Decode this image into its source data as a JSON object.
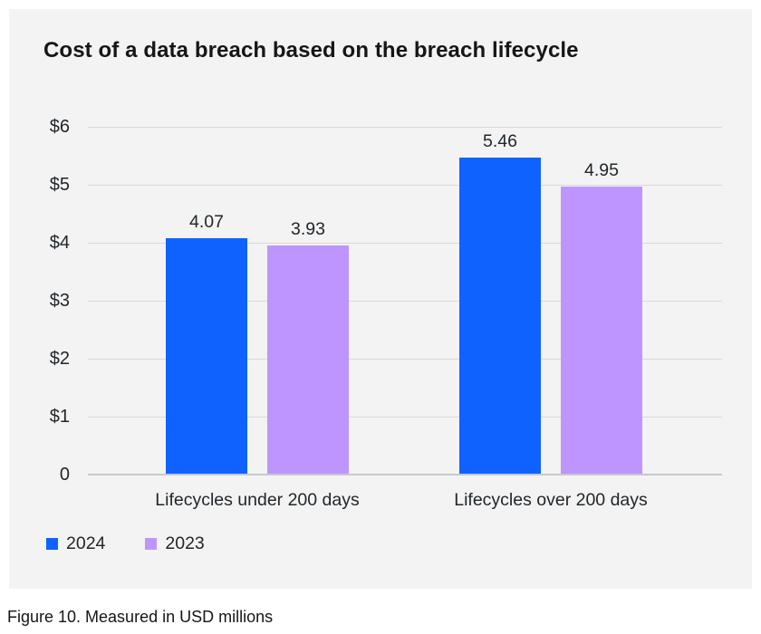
{
  "title": "Cost of a data breach based on the breach lifecycle",
  "caption": "Figure 10. Measured in USD millions",
  "colors": {
    "panel_background": "#f3f3f3",
    "series_2024": "#0f62fe",
    "series_2023": "#be95ff",
    "gridline": "#d6d9dc",
    "axis_line": "#c5cad0",
    "text": "#21272a",
    "title_text": "#161616"
  },
  "chart_data": {
    "type": "bar",
    "title": "Cost of a data breach based on the breach lifecycle",
    "caption": "Figure 10. Measured in USD millions",
    "categories": [
      "Lifecycles under 200 days",
      "Lifecycles over 200 days"
    ],
    "series": [
      {
        "name": "2024",
        "color": "#0f62fe",
        "values": [
          4.07,
          5.46
        ]
      },
      {
        "name": "2023",
        "color": "#be95ff",
        "values": [
          3.93,
          4.95
        ]
      }
    ],
    "value_label_format": "two_decimals",
    "xlabel": "",
    "ylabel": "USD millions",
    "ylim": [
      0,
      6
    ],
    "y_ticks": [
      {
        "label": "$6",
        "value": 6
      },
      {
        "label": "$5",
        "value": 5
      },
      {
        "label": "$4",
        "value": 4
      },
      {
        "label": "$3",
        "value": 3
      },
      {
        "label": "$2",
        "value": 2
      },
      {
        "label": "$1",
        "value": 1
      },
      {
        "label": "0",
        "value": 0
      }
    ],
    "grid": true,
    "legend_position": "bottom-left"
  }
}
